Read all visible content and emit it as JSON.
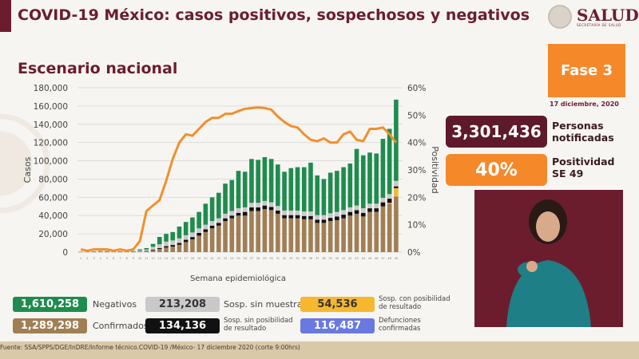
{
  "header": {
    "title": "COVID-19 México: casos positivos, sospechosos y negativos",
    "subtitle": "Escenario nacional",
    "logo_text": "SALUD",
    "logo_sub": "SECRETARÍA DE SALUD"
  },
  "side": {
    "phase": "Fase 3",
    "date": "17 diciembre, 2020",
    "notified_value": "3,301,436",
    "notified_label_1": "Personas",
    "notified_label_2": "notificadas",
    "positivity_value": "40%",
    "positivity_label_1": "Positividad",
    "positivity_label_2": "SE 49"
  },
  "legend": [
    {
      "value": "1,610,258",
      "label": "Negativos",
      "color": "#1e8c4e"
    },
    {
      "value": "1,289,298",
      "label": "Confirmados",
      "color": "#a07f55"
    },
    {
      "value": "213,208",
      "label": "Sosp. sin muestra",
      "color": "#c9c9c9"
    },
    {
      "value": "134,136",
      "label": "Sosp. sin posibilidad de resultado",
      "color": "#111111"
    },
    {
      "value": "54,536",
      "label": "Sosp. con posibilidad de resultado",
      "color": "#f5b82e"
    },
    {
      "value": "116,487",
      "label": "Defunciones confirmadas",
      "color": "#6a79e0"
    }
  ],
  "footer": "Fuente: SSA/SPPS/DGE/InDRE/Informe técnico.COVID-19 /México- 17 diciembre 2020 (corte 9:00hrs)",
  "chart_data": {
    "type": "bar",
    "stacked": true,
    "xlabel": "Semana epidemiológica",
    "ylabel": "Casos",
    "y2label": "Positividad",
    "ylim": [
      0,
      180000
    ],
    "y2lim": [
      0,
      60
    ],
    "yticks": [
      "0",
      "20,000",
      "40,000",
      "60,000",
      "80,000",
      "100,000",
      "120,000",
      "140,000",
      "160,000",
      "180,000"
    ],
    "y2ticks": [
      "0%",
      "10%",
      "20%",
      "30%",
      "40%",
      "50%",
      "60%"
    ],
    "grid": true,
    "categories": [
      1,
      2,
      3,
      4,
      5,
      6,
      7,
      8,
      9,
      10,
      11,
      12,
      13,
      14,
      15,
      16,
      17,
      18,
      19,
      20,
      21,
      22,
      23,
      24,
      25,
      26,
      27,
      28,
      29,
      30,
      31,
      32,
      33,
      34,
      35,
      36,
      37,
      38,
      39,
      40,
      41,
      42,
      43,
      44,
      45,
      46,
      47,
      48,
      49
    ],
    "series": [
      {
        "name": "Confirmados",
        "color": "#a07f55",
        "values": [
          100,
          100,
          100,
          100,
          100,
          100,
          100,
          100,
          100,
          500,
          1000,
          2000,
          3500,
          5000,
          6000,
          8000,
          11000,
          14000,
          18000,
          22000,
          26000,
          29000,
          34000,
          37000,
          40000,
          40000,
          45000,
          45000,
          47000,
          46000,
          42000,
          37000,
          37000,
          37000,
          36000,
          36000,
          32000,
          32000,
          34000,
          35000,
          37000,
          40000,
          42000,
          39000,
          44000,
          44000,
          50000,
          53000,
          61000
        ]
      },
      {
        "name": "Sosp. con posibilidad de resultado",
        "color": "#f5b82e",
        "values": [
          0,
          0,
          0,
          0,
          0,
          0,
          0,
          0,
          0,
          0,
          0,
          0,
          0,
          0,
          0,
          0,
          0,
          0,
          0,
          0,
          0,
          0,
          0,
          0,
          0,
          0,
          0,
          0,
          0,
          0,
          0,
          0,
          0,
          0,
          0,
          0,
          0,
          0,
          0,
          0,
          0,
          0,
          0,
          0,
          0,
          0,
          0,
          1000,
          9000
        ]
      },
      {
        "name": "Sosp. sin posibilidad de resultado",
        "color": "#111111",
        "values": [
          0,
          0,
          0,
          0,
          0,
          0,
          0,
          0,
          0,
          200,
          300,
          800,
          1000,
          1500,
          1800,
          2000,
          2500,
          2500,
          3000,
          3000,
          3000,
          3000,
          3000,
          3000,
          3000,
          4000,
          4000,
          4000,
          4000,
          3500,
          3500,
          3500,
          3500,
          3500,
          3500,
          3500,
          3500,
          3500,
          3500,
          4000,
          4000,
          4000,
          4000,
          4000,
          4000,
          4000,
          4500,
          4500,
          2000
        ]
      },
      {
        "name": "Sosp. sin muestra",
        "color": "#c9c9c9",
        "values": [
          200,
          200,
          200,
          200,
          200,
          200,
          200,
          200,
          200,
          1000,
          1500,
          3000,
          4000,
          5000,
          5000,
          5000,
          5000,
          5000,
          5000,
          5000,
          5000,
          5000,
          5000,
          5000,
          5000,
          5000,
          5000,
          5000,
          5000,
          5000,
          5000,
          5000,
          5000,
          5000,
          5000,
          5000,
          5000,
          5000,
          5000,
          5000,
          5000,
          5000,
          5000,
          5000,
          5000,
          5000,
          5000,
          5000,
          6000
        ]
      },
      {
        "name": "Negativos",
        "color": "#1e8c4e",
        "values": [
          300,
          400,
          600,
          800,
          800,
          600,
          600,
          600,
          800,
          1300,
          1600,
          3200,
          8100,
          8500,
          9200,
          13000,
          14500,
          16500,
          18000,
          23000,
          26000,
          28000,
          33000,
          34000,
          41000,
          39000,
          48000,
          47000,
          48000,
          47500,
          45500,
          42500,
          46500,
          47500,
          48500,
          53500,
          43500,
          39500,
          44500,
          45000,
          47000,
          48000,
          62000,
          58000,
          56000,
          55000,
          64500,
          71500,
          89000
        ]
      }
    ],
    "line": {
      "name": "Positividad",
      "axis": "right",
      "color": "#f0902c",
      "values": [
        1,
        0.5,
        1,
        1,
        1,
        0.5,
        1,
        0.5,
        1,
        4,
        15,
        17,
        19,
        26,
        34,
        40,
        43,
        42.5,
        45,
        47.5,
        49,
        49,
        50.5,
        50.5,
        51.5,
        52.3,
        52.6,
        52.8,
        52.6,
        52,
        49.5,
        47.5,
        46,
        45.5,
        43,
        41,
        40.5,
        41.5,
        40,
        40,
        43,
        44,
        41,
        40.5,
        45,
        45,
        45.5,
        43,
        40
      ]
    }
  }
}
